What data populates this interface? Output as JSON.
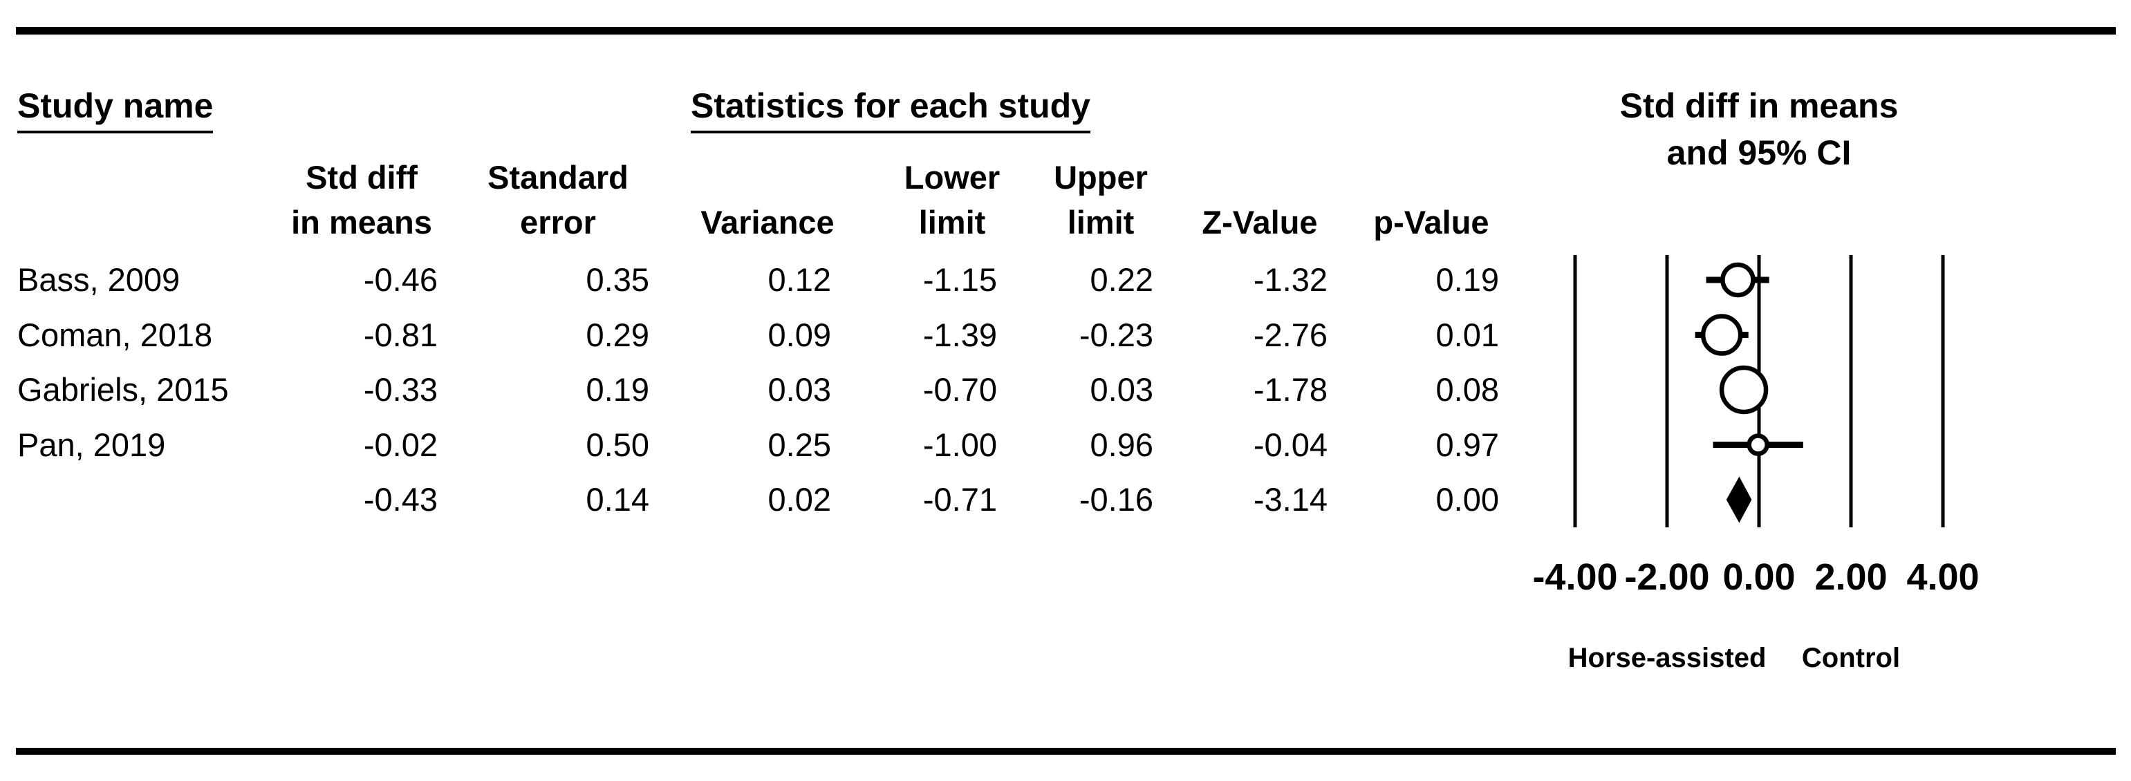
{
  "figure": {
    "left_header": {
      "label": "Study name"
    },
    "center_header": {
      "label": "Statistics for each study"
    },
    "right_header": {
      "line1": "Std diff in means",
      "line2": "and 95% CI"
    },
    "stat_columns": [
      {
        "id": "std_diff_in_means",
        "lines": [
          "Std diff",
          "in means"
        ]
      },
      {
        "id": "standard_error",
        "lines": [
          "Standard",
          "error"
        ]
      },
      {
        "id": "variance",
        "lines": [
          "Variance"
        ]
      },
      {
        "id": "lower_limit",
        "lines": [
          "Lower",
          "limit"
        ]
      },
      {
        "id": "upper_limit",
        "lines": [
          "Upper",
          "limit"
        ]
      },
      {
        "id": "z_value",
        "lines": [
          "Z-Value"
        ]
      },
      {
        "id": "p_value",
        "lines": [
          "p-Value"
        ]
      }
    ],
    "colors": {
      "foreground": "#000000",
      "background": "#ffffff"
    }
  },
  "chart_data": {
    "type": "forest",
    "title": "Std diff in means and 95% CI",
    "effect_measure": "Std diff in means",
    "x_ticks": [
      {
        "value": -4,
        "label": "-4.00"
      },
      {
        "value": -2,
        "label": "-2.00"
      },
      {
        "value": 0,
        "label": "0.00"
      },
      {
        "value": 2,
        "label": "2.00"
      },
      {
        "value": 4,
        "label": "4.00"
      }
    ],
    "favours_left": "Horse-assisted",
    "favours_right": "Control",
    "studies": [
      {
        "name": "Bass, 2009",
        "std_diff_in_means": -0.46,
        "standard_error": 0.35,
        "variance": 0.12,
        "lower_limit": -1.15,
        "upper_limit": 0.22,
        "z_value": -1.32,
        "p_value": 0.19,
        "marker": "circle",
        "marker_radius": 22,
        "summary": false
      },
      {
        "name": "Coman, 2018",
        "std_diff_in_means": -0.81,
        "standard_error": 0.29,
        "variance": 0.09,
        "lower_limit": -1.39,
        "upper_limit": -0.23,
        "z_value": -2.76,
        "p_value": 0.01,
        "marker": "circle",
        "marker_radius": 27,
        "summary": false
      },
      {
        "name": "Gabriels, 2015",
        "std_diff_in_means": -0.33,
        "standard_error": 0.19,
        "variance": 0.03,
        "lower_limit": -0.7,
        "upper_limit": 0.03,
        "z_value": -1.78,
        "p_value": 0.08,
        "marker": "circle",
        "marker_radius": 32,
        "summary": false
      },
      {
        "name": "Pan, 2019",
        "std_diff_in_means": -0.02,
        "standard_error": 0.5,
        "variance": 0.25,
        "lower_limit": -1.0,
        "upper_limit": 0.96,
        "z_value": -0.04,
        "p_value": 0.97,
        "marker": "circle",
        "marker_radius": 13,
        "summary": false
      },
      {
        "name": "",
        "std_diff_in_means": -0.43,
        "standard_error": 0.14,
        "variance": 0.02,
        "lower_limit": -0.71,
        "upper_limit": -0.16,
        "z_value": -3.14,
        "p_value": 0.0,
        "marker": "diamond",
        "marker_radius": 0,
        "summary": true
      }
    ]
  }
}
